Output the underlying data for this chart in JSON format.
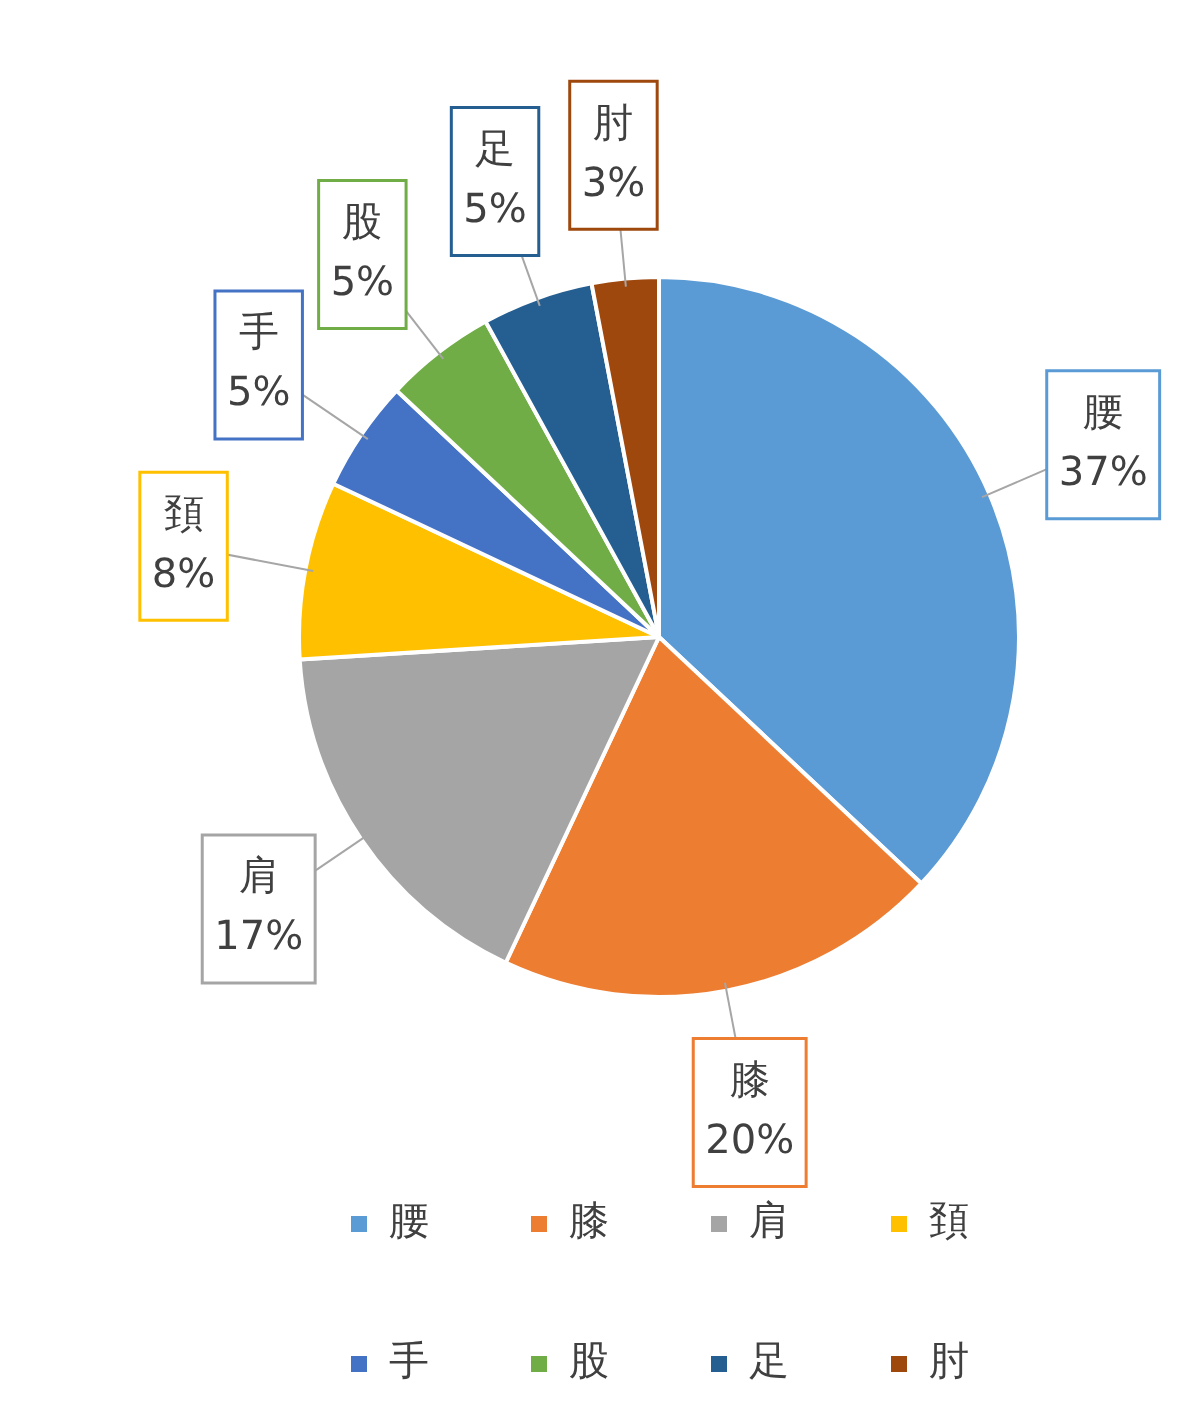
{
  "chart_data": {
    "type": "pie",
    "categories": [
      "腰",
      "膝",
      "肩",
      "頚",
      "手",
      "股",
      "足",
      "肘"
    ],
    "values": [
      37,
      20,
      17,
      8,
      5,
      5,
      5,
      3
    ],
    "value_labels": [
      "37%",
      "20%",
      "17%",
      "8%",
      "5%",
      "5%",
      "5%",
      "3%"
    ],
    "colors": [
      "#5b9bd5",
      "#ed7d31",
      "#a5a5a5",
      "#ffc000",
      "#4472c4",
      "#70ad47",
      "#255e91",
      "#9e480e"
    ],
    "legend": "bottom"
  }
}
